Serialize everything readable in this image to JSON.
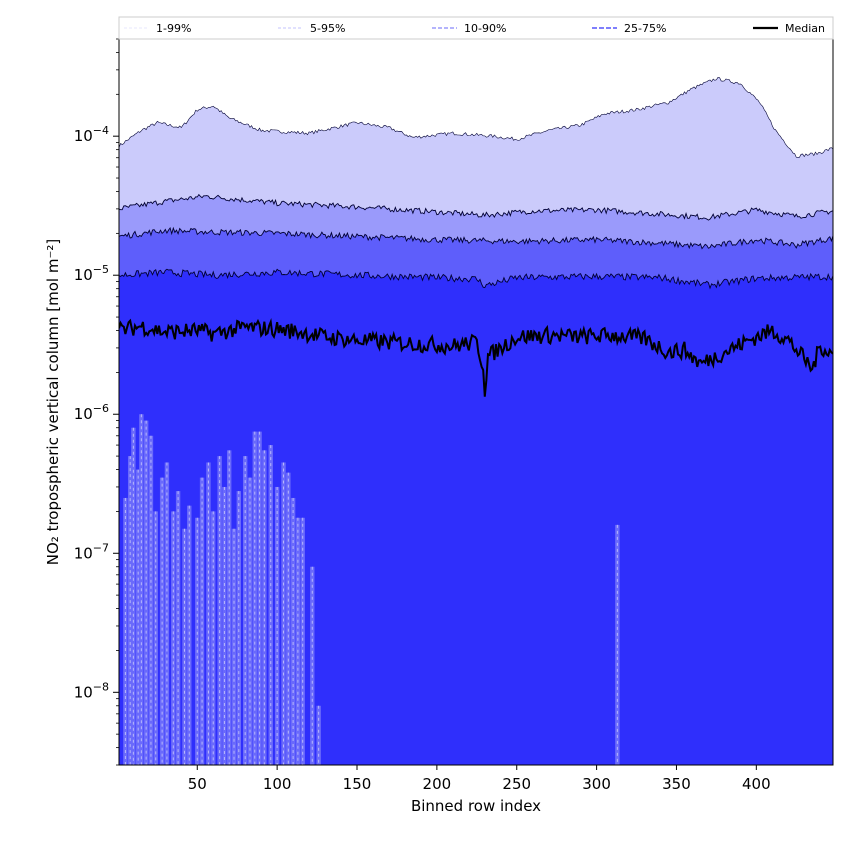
{
  "chart_data": {
    "type": "area",
    "xlabel": "Binned row index",
    "ylabel": "NO₂ tropospheric vertical column [mol m⁻²]",
    "y_scale": "log",
    "xlim": [
      1,
      448
    ],
    "ylim": [
      3e-09,
      0.0005
    ],
    "x_ticks": [
      50,
      100,
      150,
      200,
      250,
      300,
      350,
      400
    ],
    "x_tick_labels": [
      "50",
      "100",
      "150",
      "200",
      "250",
      "300",
      "350",
      "400"
    ],
    "y_ticks": [
      1e-08,
      1e-07,
      1e-06,
      1e-05,
      0.0001
    ],
    "y_tick_labels": [
      "10^-8",
      "10^-7",
      "10^-6",
      "10^-5",
      "10^-4"
    ],
    "grid": false,
    "legend_placement": "top",
    "legend": [
      "1-99%",
      "5-95%",
      "10-90%",
      "25-75%",
      "Median"
    ],
    "colors": {
      "band_1_99": "#cbcbfb",
      "band_5_95": "#9a9afb",
      "band_10_90": "#5e5efb",
      "band_25_75": "#2f2ffc",
      "median": "#000000",
      "low_outliers": "#6a6afb"
    },
    "series": [
      {
        "name": "1-99%",
        "kind": "band",
        "upper": [
          [
            1,
            8.5e-05
          ],
          [
            15,
            0.00011
          ],
          [
            25,
            0.000125
          ],
          [
            40,
            0.000115
          ],
          [
            50,
            0.000155
          ],
          [
            60,
            0.000165
          ],
          [
            70,
            0.000135
          ],
          [
            90,
            0.00011
          ],
          [
            120,
            0.000105
          ],
          [
            150,
            0.000125
          ],
          [
            170,
            0.000115
          ],
          [
            185,
            9.8e-05
          ],
          [
            210,
            0.000105
          ],
          [
            235,
            0.0001
          ],
          [
            250,
            9.5e-05
          ],
          [
            270,
            0.00011
          ],
          [
            290,
            0.00012
          ],
          [
            305,
            0.000145
          ],
          [
            325,
            0.000155
          ],
          [
            345,
            0.000175
          ],
          [
            360,
            0.00022
          ],
          [
            375,
            0.00026
          ],
          [
            390,
            0.00024
          ],
          [
            402,
            0.000175
          ],
          [
            412,
            0.00011
          ],
          [
            425,
            7.2e-05
          ],
          [
            438,
            7.5e-05
          ],
          [
            448,
            8.2e-05
          ]
        ],
        "lower_bound": "axis"
      },
      {
        "name": "5-95%",
        "kind": "band",
        "upper": [
          [
            1,
            3e-05
          ],
          [
            30,
            3.4e-05
          ],
          [
            55,
            3.7e-05
          ],
          [
            100,
            3.3e-05
          ],
          [
            150,
            3.1e-05
          ],
          [
            200,
            2.85e-05
          ],
          [
            230,
            2.7e-05
          ],
          [
            260,
            2.9e-05
          ],
          [
            300,
            2.95e-05
          ],
          [
            330,
            2.8e-05
          ],
          [
            370,
            2.6e-05
          ],
          [
            400,
            2.95e-05
          ],
          [
            425,
            2.65e-05
          ],
          [
            448,
            2.9e-05
          ]
        ],
        "lower_bound": "axis"
      },
      {
        "name": "10-90%",
        "kind": "band",
        "upper": [
          [
            1,
            1.9e-05
          ],
          [
            30,
            2.1e-05
          ],
          [
            55,
            2.05e-05
          ],
          [
            100,
            2e-05
          ],
          [
            150,
            1.9e-05
          ],
          [
            200,
            1.8e-05
          ],
          [
            250,
            1.75e-05
          ],
          [
            300,
            1.8e-05
          ],
          [
            340,
            1.7e-05
          ],
          [
            370,
            1.6e-05
          ],
          [
            400,
            1.8e-05
          ],
          [
            425,
            1.65e-05
          ],
          [
            448,
            1.85e-05
          ]
        ],
        "lower_bound": "axis"
      },
      {
        "name": "25-75%",
        "kind": "band",
        "upper": [
          [
            1,
            1e-05
          ],
          [
            30,
            1.05e-05
          ],
          [
            60,
            1e-05
          ],
          [
            100,
            1.05e-05
          ],
          [
            150,
            1e-05
          ],
          [
            200,
            9.6e-06
          ],
          [
            225,
            9.4e-06
          ],
          [
            230,
            8.4e-06
          ],
          [
            250,
            9.6e-06
          ],
          [
            300,
            9.8e-06
          ],
          [
            340,
            9.6e-06
          ],
          [
            370,
            8.5e-06
          ],
          [
            400,
            9.5e-06
          ],
          [
            448,
            9.8e-06
          ]
        ],
        "lower_bound": "axis"
      },
      {
        "name": "Median",
        "kind": "line",
        "values": [
          [
            1,
            4e-06
          ],
          [
            15,
            4.3e-06
          ],
          [
            30,
            3.9e-06
          ],
          [
            50,
            4e-06
          ],
          [
            60,
            3.8e-06
          ],
          [
            80,
            4.2e-06
          ],
          [
            100,
            4.1e-06
          ],
          [
            115,
            3.9e-06
          ],
          [
            130,
            3.6e-06
          ],
          [
            150,
            3.4e-06
          ],
          [
            170,
            3.3e-06
          ],
          [
            190,
            3.2e-06
          ],
          [
            210,
            3.1e-06
          ],
          [
            225,
            3.3e-06
          ],
          [
            229,
            2.2e-06
          ],
          [
            230,
            1.5e-06
          ],
          [
            232,
            2.6e-06
          ],
          [
            250,
            3.6e-06
          ],
          [
            270,
            3.7e-06
          ],
          [
            290,
            3.6e-06
          ],
          [
            310,
            3.7e-06
          ],
          [
            330,
            3.5e-06
          ],
          [
            345,
            2.8e-06
          ],
          [
            355,
            2.9e-06
          ],
          [
            365,
            2.3e-06
          ],
          [
            380,
            2.8e-06
          ],
          [
            400,
            3.6e-06
          ],
          [
            410,
            4e-06
          ],
          [
            420,
            3.4e-06
          ],
          [
            430,
            2.5e-06
          ],
          [
            435,
            2.1e-06
          ],
          [
            440,
            3.1e-06
          ],
          [
            448,
            2.7e-06
          ]
        ]
      },
      {
        "name": "low-percentile spikes",
        "kind": "spikes",
        "values": [
          [
            5,
            2.5e-07
          ],
          [
            8,
            5e-07
          ],
          [
            10,
            8e-07
          ],
          [
            13,
            4e-07
          ],
          [
            15,
            1e-06
          ],
          [
            18,
            9e-07
          ],
          [
            21,
            7e-07
          ],
          [
            24,
            2e-07
          ],
          [
            28,
            3.5e-07
          ],
          [
            31,
            4.5e-07
          ],
          [
            35,
            2e-07
          ],
          [
            38,
            2.8e-07
          ],
          [
            42,
            1.5e-07
          ],
          [
            45,
            2.2e-07
          ],
          [
            50,
            1.8e-07
          ],
          [
            53,
            3.5e-07
          ],
          [
            57,
            4.5e-07
          ],
          [
            60,
            2e-07
          ],
          [
            64,
            5e-07
          ],
          [
            67,
            3e-07
          ],
          [
            70,
            5.5e-07
          ],
          [
            73,
            1.5e-07
          ],
          [
            76,
            2.8e-07
          ],
          [
            80,
            5e-07
          ],
          [
            83,
            3.5e-07
          ],
          [
            86,
            7.5e-07
          ],
          [
            89,
            7.5e-07
          ],
          [
            92,
            5.5e-07
          ],
          [
            96,
            6e-07
          ],
          [
            100,
            3e-07
          ],
          [
            104,
            4.5e-07
          ],
          [
            107,
            3.8e-07
          ],
          [
            110,
            2.5e-07
          ],
          [
            113,
            1.8e-07
          ],
          [
            116,
            1.8e-07
          ],
          [
            122,
            8e-08
          ],
          [
            126,
            8e-09
          ],
          [
            313,
            1.6e-07
          ]
        ]
      }
    ]
  }
}
